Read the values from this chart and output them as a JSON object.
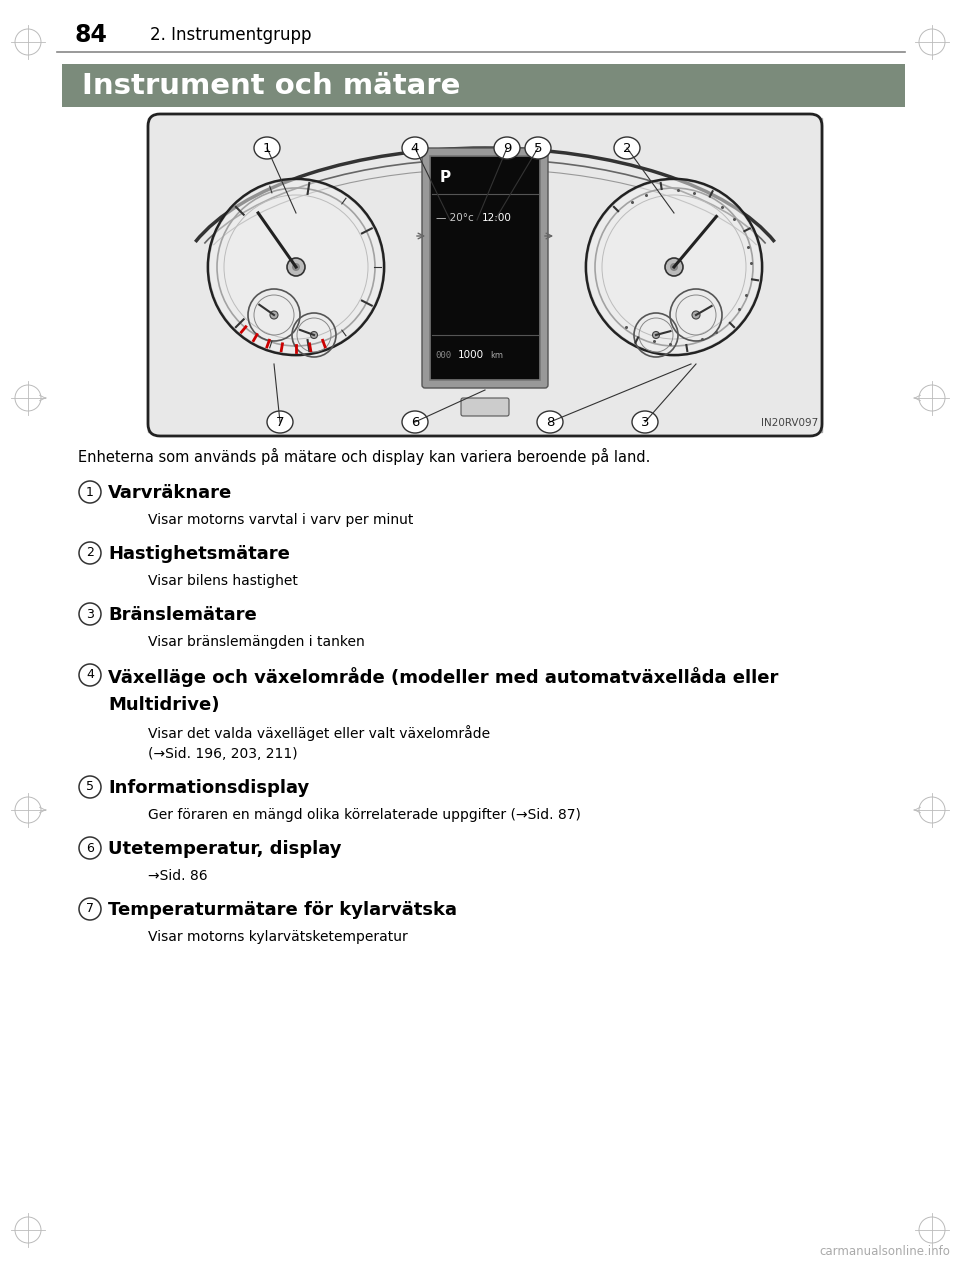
{
  "page_number": "84",
  "chapter_title": "2. Instrumentgrupp",
  "section_title": "Instrument och mätare",
  "section_title_bg": "#7b8b7b",
  "section_title_color": "#ffffff",
  "image_caption": "IN20RV097",
  "intro_text": "Enheterna som används på mätare och display kan variera beroende på land.",
  "items": [
    {
      "number": "1",
      "heading": "Varvräknare",
      "body": "Visar motorns varvtal i varv per minut",
      "body2": ""
    },
    {
      "number": "2",
      "heading": "Hastighetsmätare",
      "body": "Visar bilens hastighet",
      "body2": ""
    },
    {
      "number": "3",
      "heading": "Bränslemätare",
      "body": "Visar bränslemängden i tanken",
      "body2": ""
    },
    {
      "number": "4",
      "heading": "Växelläge och växelområde (modeller med automatväxellåda eller\nMultidrive)",
      "body": "Visar det valda växelläget eller valt växelområde",
      "body2": "(→Sid. 196, 203, 211)"
    },
    {
      "number": "5",
      "heading": "Informationsdisplay",
      "body": "Ger föraren en mängd olika körrelaterade uppgifter (→Sid. 87)",
      "body2": ""
    },
    {
      "number": "6",
      "heading": "Utetemperatur, display",
      "body": "→Sid. 86",
      "body2": ""
    },
    {
      "number": "7",
      "heading": "Temperaturmätare för kylarvätska",
      "body": "Visar motorns kylarvätsketemperatur",
      "body2": ""
    }
  ],
  "bg_color": "#ffffff",
  "text_color": "#000000",
  "watermark": "carmanualsonline.info"
}
